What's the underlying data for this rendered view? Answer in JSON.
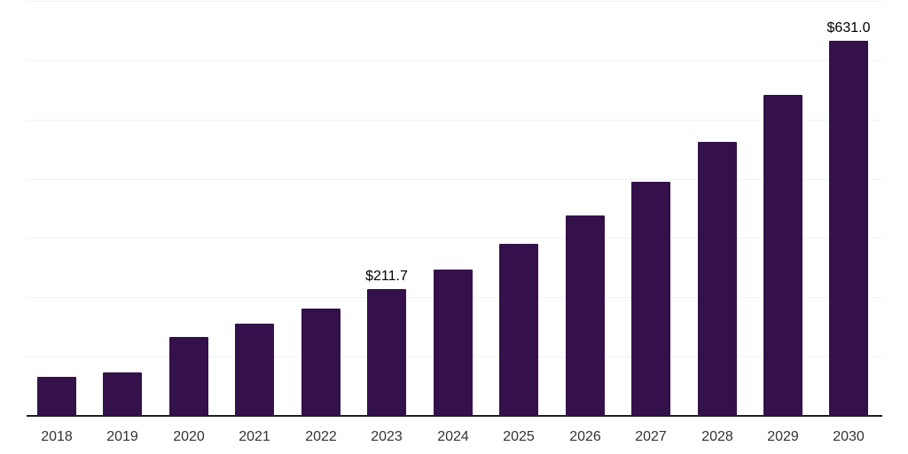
{
  "chart_data": {
    "type": "bar",
    "title": "",
    "xlabel": "",
    "ylabel": "",
    "categories": [
      "2018",
      "2019",
      "2020",
      "2021",
      "2022",
      "2023",
      "2024",
      "2025",
      "2026",
      "2027",
      "2028",
      "2029",
      "2030"
    ],
    "values": [
      64,
      72,
      132,
      154,
      179,
      211.7,
      246,
      288,
      337,
      394,
      461,
      540,
      631.0
    ],
    "annotations": [
      {
        "category": "2023",
        "text": "$211.7"
      },
      {
        "category": "2030",
        "text": "$631.0"
      }
    ],
    "ylim": [
      0,
      700
    ],
    "gridline_step": 100,
    "grid": "horizontal",
    "legend_position": "none",
    "y_axis_tick_labels_visible": false,
    "colors": {
      "bar": "#34114b",
      "gridline": "#f2f2f2",
      "axis_line": "#1f1f1f",
      "tick_label": "#333333",
      "data_label": "#000000",
      "background": "#ffffff"
    }
  }
}
